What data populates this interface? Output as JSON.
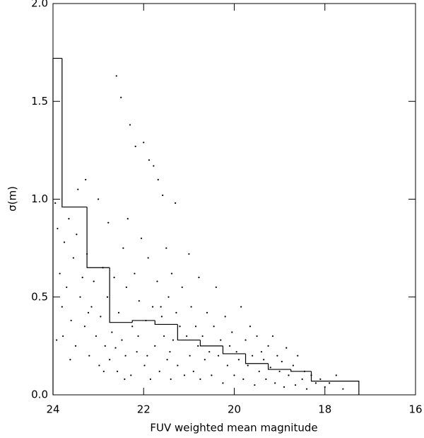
{
  "chart_data": {
    "type": "scatter",
    "xlabel": "FUV weighted mean magnitude",
    "ylabel": "σ(m)",
    "xlim": [
      24,
      16
    ],
    "xticks": [
      24,
      22,
      20,
      18,
      16
    ],
    "ylim": [
      0,
      2
    ],
    "yticks": [
      {
        "value": 0,
        "label": "0.0"
      },
      0.5,
      {
        "value": 1,
        "label": "1.0"
      },
      1.5,
      {
        "value": 2,
        "label": "2.0"
      }
    ],
    "color": "#000000",
    "points": {
      "x": [
        23.95,
        23.9,
        23.85,
        23.8,
        23.78,
        23.75,
        23.7,
        23.65,
        23.6,
        23.55,
        23.5,
        23.48,
        23.45,
        23.4,
        23.35,
        23.3,
        23.28,
        23.25,
        23.2,
        23.15,
        23.1,
        23.05,
        23.0,
        22.98,
        22.95,
        22.9,
        22.85,
        22.8,
        22.78,
        22.75,
        22.7,
        22.65,
        22.6,
        22.58,
        22.55,
        22.5,
        22.48,
        22.45,
        22.4,
        22.38,
        22.35,
        22.3,
        22.28,
        22.25,
        22.2,
        22.18,
        22.15,
        22.1,
        22.05,
        22.0,
        21.98,
        21.95,
        21.9,
        21.88,
        21.85,
        21.8,
        21.78,
        21.75,
        21.7,
        21.68,
        21.65,
        21.6,
        21.58,
        21.55,
        21.5,
        21.48,
        21.45,
        21.4,
        21.38,
        21.35,
        21.3,
        21.28,
        21.25,
        21.2,
        21.15,
        21.1,
        21.05,
        21.0,
        20.98,
        20.95,
        20.9,
        20.85,
        20.8,
        20.78,
        20.75,
        20.7,
        20.65,
        20.6,
        20.55,
        20.5,
        20.45,
        20.4,
        20.35,
        20.3,
        20.25,
        20.2,
        20.15,
        20.1,
        20.05,
        20.0,
        19.95,
        19.9,
        19.85,
        19.8,
        19.75,
        19.7,
        19.65,
        19.6,
        19.55,
        19.5,
        19.45,
        19.4,
        19.35,
        19.3,
        19.25,
        19.2,
        19.15,
        19.1,
        19.05,
        19.0,
        18.95,
        18.9,
        18.85,
        18.8,
        18.7,
        18.65,
        18.6,
        18.5,
        18.45,
        18.4,
        18.3,
        18.2,
        18.1,
        18.0,
        17.9,
        17.75,
        17.6,
        23.92,
        23.62,
        23.22,
        22.88,
        22.62,
        22.42,
        22.12,
        21.92,
        21.62,
        21.42
      ],
      "y": [
        0.98,
        0.85,
        0.62,
        0.45,
        0.3,
        0.78,
        0.55,
        0.9,
        0.38,
        0.7,
        0.25,
        0.82,
        1.05,
        0.5,
        0.6,
        0.35,
        1.1,
        0.72,
        0.2,
        0.45,
        0.58,
        0.3,
        1.0,
        0.15,
        0.4,
        0.65,
        0.25,
        0.5,
        0.88,
        0.18,
        0.32,
        0.6,
        1.63,
        0.12,
        0.42,
        1.52,
        0.28,
        0.75,
        0.2,
        0.55,
        0.9,
        1.38,
        0.1,
        0.35,
        0.62,
        1.27,
        0.22,
        0.48,
        0.8,
        1.29,
        0.15,
        0.38,
        0.7,
        1.2,
        0.08,
        0.45,
        1.17,
        0.25,
        0.58,
        1.1,
        0.12,
        0.4,
        1.02,
        0.3,
        0.75,
        0.18,
        0.5,
        0.08,
        0.62,
        0.28,
        0.98,
        0.42,
        0.15,
        0.35,
        0.55,
        0.1,
        0.3,
        0.72,
        0.2,
        0.45,
        0.12,
        0.35,
        0.25,
        0.6,
        0.08,
        0.3,
        0.18,
        0.42,
        0.22,
        0.1,
        0.35,
        0.55,
        0.2,
        0.28,
        0.06,
        0.4,
        0.15,
        0.25,
        0.32,
        0.1,
        0.22,
        0.18,
        0.45,
        0.08,
        0.28,
        0.15,
        0.35,
        0.2,
        0.05,
        0.3,
        0.12,
        0.22,
        0.18,
        0.08,
        0.25,
        0.14,
        0.3,
        0.06,
        0.2,
        0.12,
        0.17,
        0.04,
        0.24,
        0.1,
        0.15,
        0.05,
        0.2,
        0.08,
        0.12,
        0.03,
        0.1,
        0.06,
        0.08,
        0.04,
        0.06,
        0.1,
        0.03,
        0.28,
        0.18,
        0.42,
        0.12,
        0.24,
        0.08,
        0.3,
        0.2,
        0.45,
        0.22
      ]
    },
    "step": {
      "bins": [
        24,
        23.8,
        23.25,
        22.75,
        22.25,
        21.75,
        21.25,
        20.75,
        20.25,
        19.75,
        19.25,
        18.75,
        18.3,
        17.25
      ],
      "values": [
        1.72,
        0.96,
        0.65,
        0.37,
        0.38,
        0.36,
        0.28,
        0.25,
        0.21,
        0.16,
        0.13,
        0.12,
        0.07
      ]
    }
  }
}
